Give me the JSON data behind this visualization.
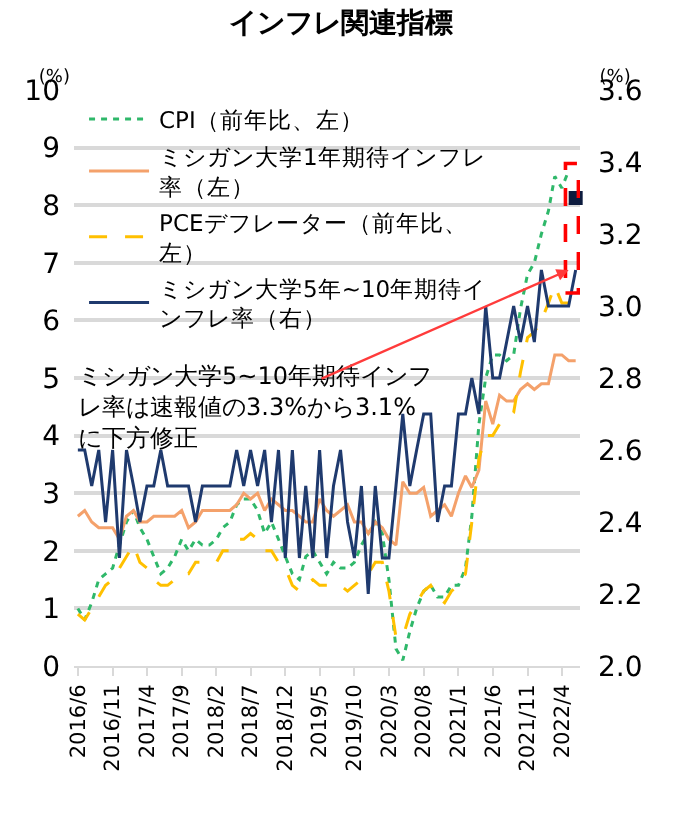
{
  "chart_data": {
    "type": "line",
    "title": "インフレ関連指標",
    "ylabel": "(%)",
    "y2label": "(%)",
    "x": [
      "2016-06",
      "2016-07",
      "2016-08",
      "2016-09",
      "2016-10",
      "2016-11",
      "2016-12",
      "2017-01",
      "2017-02",
      "2017-03",
      "2017-04",
      "2017-05",
      "2017-06",
      "2017-07",
      "2017-08",
      "2017-09",
      "2017-10",
      "2017-11",
      "2017-12",
      "2018-01",
      "2018-02",
      "2018-03",
      "2018-04",
      "2018-05",
      "2018-06",
      "2018-07",
      "2018-08",
      "2018-09",
      "2018-10",
      "2018-11",
      "2018-12",
      "2019-01",
      "2019-02",
      "2019-03",
      "2019-04",
      "2019-05",
      "2019-06",
      "2019-07",
      "2019-08",
      "2019-09",
      "2019-10",
      "2019-11",
      "2019-12",
      "2020-01",
      "2020-02",
      "2020-03",
      "2020-04",
      "2020-05",
      "2020-06",
      "2020-07",
      "2020-08",
      "2020-09",
      "2020-10",
      "2020-11",
      "2020-12",
      "2021-01",
      "2021-02",
      "2021-03",
      "2021-04",
      "2021-05",
      "2021-06",
      "2021-07",
      "2021-08",
      "2021-09",
      "2021-10",
      "2021-11",
      "2021-12",
      "2022-01",
      "2022-02",
      "2022-03",
      "2022-04",
      "2022-05",
      "2022-06"
    ],
    "series": [
      {
        "name": "CPI（前年比、左）",
        "color": "#2fb86a",
        "line_style": "dotted",
        "values": [
          1.0,
          0.8,
          1.1,
          1.5,
          1.6,
          1.7,
          2.1,
          2.5,
          2.7,
          2.4,
          2.2,
          1.9,
          1.6,
          1.7,
          1.9,
          2.2,
          2.0,
          2.2,
          2.1,
          2.1,
          2.2,
          2.4,
          2.5,
          2.8,
          2.9,
          2.9,
          2.7,
          2.3,
          2.5,
          2.2,
          1.9,
          1.6,
          1.5,
          1.9,
          2.0,
          1.8,
          1.6,
          1.8,
          1.7,
          1.7,
          1.8,
          2.1,
          2.3,
          2.5,
          2.3,
          1.5,
          0.3,
          0.1,
          0.6,
          1.0,
          1.3,
          1.4,
          1.2,
          1.2,
          1.4,
          1.4,
          1.7,
          2.6,
          4.2,
          5.0,
          5.4,
          5.4,
          5.3,
          5.4,
          6.2,
          6.8,
          7.0,
          7.5,
          7.9,
          8.5,
          8.3,
          8.6,
          null
        ]
      },
      {
        "name": "ミシガン大学1年期待インフレ率（左）",
        "color": "#f4a16b",
        "line_style": "solid",
        "values": [
          2.6,
          2.7,
          2.5,
          2.4,
          2.4,
          2.4,
          2.2,
          2.6,
          2.7,
          2.5,
          2.5,
          2.6,
          2.6,
          2.6,
          2.6,
          2.7,
          2.4,
          2.5,
          2.7,
          2.7,
          2.7,
          2.7,
          2.7,
          2.8,
          3.0,
          2.9,
          3.0,
          2.7,
          2.9,
          2.8,
          2.7,
          2.7,
          2.6,
          2.5,
          2.5,
          2.9,
          2.7,
          2.6,
          2.7,
          2.8,
          2.5,
          2.5,
          2.3,
          2.5,
          2.4,
          2.2,
          2.1,
          3.2,
          3.0,
          3.0,
          3.1,
          2.6,
          2.7,
          2.8,
          2.6,
          3.0,
          3.3,
          3.1,
          3.4,
          4.6,
          4.2,
          4.7,
          4.6,
          4.6,
          4.8,
          4.9,
          4.8,
          4.9,
          4.9,
          5.4,
          5.4,
          5.3,
          5.3
        ]
      },
      {
        "name": "PCEデフレーター（前年比、左）",
        "color": "#ffc000",
        "line_style": "dashed",
        "values": [
          0.9,
          0.8,
          1.0,
          1.2,
          1.4,
          1.5,
          1.7,
          1.9,
          2.1,
          1.8,
          1.7,
          1.5,
          1.4,
          1.4,
          1.5,
          1.6,
          1.6,
          1.8,
          1.8,
          1.8,
          1.8,
          2.0,
          2.0,
          2.2,
          2.2,
          2.3,
          2.2,
          2.0,
          2.0,
          1.8,
          1.7,
          1.4,
          1.3,
          1.4,
          1.5,
          1.4,
          1.4,
          1.4,
          1.4,
          1.3,
          1.4,
          1.5,
          1.6,
          1.8,
          1.8,
          1.3,
          0.5,
          0.5,
          0.9,
          1.1,
          1.3,
          1.4,
          1.2,
          1.1,
          1.3,
          1.4,
          1.6,
          2.5,
          3.6,
          4.0,
          4.0,
          4.2,
          4.3,
          4.4,
          5.1,
          5.7,
          5.8,
          6.0,
          6.3,
          6.6,
          6.3,
          6.3,
          null
        ]
      },
      {
        "name": "ミシガン大学5年~10年期待インフレ率（右）",
        "color": "#1f3a6e",
        "line_style": "solid",
        "axis": "y2",
        "values": [
          2.6,
          2.6,
          2.5,
          2.6,
          2.4,
          2.6,
          2.3,
          2.6,
          2.5,
          2.4,
          2.5,
          2.5,
          2.6,
          2.5,
          2.5,
          2.5,
          2.5,
          2.4,
          2.5,
          2.5,
          2.5,
          2.5,
          2.5,
          2.6,
          2.5,
          2.6,
          2.5,
          2.6,
          2.4,
          2.6,
          2.3,
          2.6,
          2.3,
          2.5,
          2.3,
          2.6,
          2.3,
          2.5,
          2.6,
          2.4,
          2.3,
          2.5,
          2.2,
          2.5,
          2.3,
          2.3,
          2.5,
          2.7,
          2.5,
          2.6,
          2.7,
          2.7,
          2.4,
          2.5,
          2.5,
          2.7,
          2.7,
          2.8,
          2.7,
          3.0,
          2.8,
          2.8,
          2.9,
          3.0,
          2.9,
          3.0,
          2.9,
          3.1,
          3.0,
          3.0,
          3.0,
          3.0,
          3.1
        ]
      },
      {
        "type": "scatter",
        "marker": "square",
        "color": "#0d1b3e",
        "axis": "y2",
        "values": [
          null,
          null,
          null,
          null,
          null,
          null,
          null,
          null,
          null,
          null,
          null,
          null,
          null,
          null,
          null,
          null,
          null,
          null,
          null,
          null,
          null,
          null,
          null,
          null,
          null,
          null,
          null,
          null,
          null,
          null,
          null,
          null,
          null,
          null,
          null,
          null,
          null,
          null,
          null,
          null,
          null,
          null,
          null,
          null,
          null,
          null,
          null,
          null,
          null,
          null,
          null,
          null,
          null,
          null,
          null,
          null,
          null,
          null,
          null,
          null,
          null,
          null,
          null,
          null,
          null,
          null,
          null,
          null,
          null,
          null,
          null,
          null,
          3.3
        ]
      }
    ],
    "xlim": [
      "2016-05-15",
      "2022-06-20"
    ],
    "xticks": [
      {
        "value": "2016-06",
        "label": "2016/6"
      },
      {
        "value": "2016-11",
        "label": "2016/11"
      },
      {
        "value": "2017-04",
        "label": "2017/4"
      },
      {
        "value": "2017-09",
        "label": "2017/9"
      },
      {
        "value": "2018-02",
        "label": "2018/2"
      },
      {
        "value": "2018-07",
        "label": "2018/7"
      },
      {
        "value": "2018-12",
        "label": "2018/12"
      },
      {
        "value": "2019-05",
        "label": "2019/5"
      },
      {
        "value": "2019-10",
        "label": "2019/10"
      },
      {
        "value": "2020-03",
        "label": "2020/3"
      },
      {
        "value": "2020-08",
        "label": "2020/8"
      },
      {
        "value": "2021-01",
        "label": "2021/1"
      },
      {
        "value": "2021-06",
        "label": "2021/6"
      },
      {
        "value": "2021-11",
        "label": "2021/11"
      },
      {
        "value": "2022-04",
        "label": "2022/4"
      }
    ],
    "ylim": [
      0,
      10
    ],
    "yticks": [
      0,
      1,
      2,
      3,
      4,
      5,
      6,
      7,
      8,
      9,
      10
    ],
    "y2lim": [
      2.0,
      3.6
    ],
    "y2ticks": [
      {
        "value": 2.0,
        "label": "2.0"
      },
      {
        "value": 2.2,
        "label": "2.2"
      },
      {
        "value": 2.4,
        "label": "2.4"
      },
      {
        "value": 2.6,
        "label": "2.6"
      },
      {
        "value": 2.8,
        "label": "2.8"
      },
      {
        "value": 3.0,
        "label": "3.0"
      },
      {
        "value": 3.2,
        "label": "3.2"
      },
      {
        "value": 3.4,
        "label": "3.4"
      },
      {
        "value": 3.6,
        "label": "3.6"
      }
    ],
    "grid": "y",
    "legend": "top left",
    "annotations": [
      "ミシガン大学5~10年期待インフレ率は速報値の3.3%から3.1%に下方修正"
    ]
  }
}
